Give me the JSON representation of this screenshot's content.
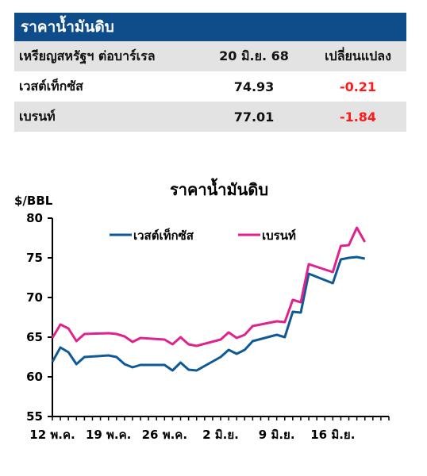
{
  "table": {
    "title": "ราคาน้ำมันดิบ",
    "header": {
      "label": "เหรียญสหรัฐฯ ต่อบาร์เรล",
      "date": "20 มิ.ย. 68",
      "change": "เปลี่ยนแปลง"
    },
    "rows": [
      {
        "name": "เวสต์เท็กซัส",
        "price": "74.93",
        "change": "-0.21"
      },
      {
        "name": "เบรนท์",
        "price": "77.01",
        "change": "-1.84"
      }
    ]
  },
  "colors": {
    "header_bg": "#0f4d8a",
    "wti": "#0f5a96",
    "brent": "#e0228c",
    "negative": "#ff1a1a"
  },
  "chart_data": {
    "type": "line",
    "title": "ราคาน้ำมันดิบ",
    "ylabel": "$/BBL",
    "ylim": [
      55,
      80
    ],
    "yticks": [
      55,
      60,
      65,
      70,
      75,
      80
    ],
    "xlim": [
      0,
      42
    ],
    "xticks": [
      {
        "pos": 0,
        "label": "12 พ.ค."
      },
      {
        "pos": 7,
        "label": "19 พ.ค."
      },
      {
        "pos": 14,
        "label": "26 พ.ค."
      },
      {
        "pos": 21,
        "label": "2 มิ.ย."
      },
      {
        "pos": 28,
        "label": "9 มิ.ย."
      },
      {
        "pos": 35,
        "label": "16 มิ.ย."
      }
    ],
    "legend_position": "top-left",
    "series": [
      {
        "name": "เวสต์เท็กซัส",
        "color": "#0f5a96",
        "points": [
          [
            0,
            61.9
          ],
          [
            1,
            63.7
          ],
          [
            2,
            63.1
          ],
          [
            3,
            61.6
          ],
          [
            4,
            62.5
          ],
          [
            7,
            62.7
          ],
          [
            8,
            62.5
          ],
          [
            9,
            61.6
          ],
          [
            10,
            61.2
          ],
          [
            11,
            61.5
          ],
          [
            14,
            61.5
          ],
          [
            15,
            60.8
          ],
          [
            16,
            61.8
          ],
          [
            17,
            60.9
          ],
          [
            18,
            60.8
          ],
          [
            21,
            62.5
          ],
          [
            22,
            63.4
          ],
          [
            23,
            62.9
          ],
          [
            24,
            63.4
          ],
          [
            25,
            64.5
          ],
          [
            28,
            65.3
          ],
          [
            29,
            65.0
          ],
          [
            30,
            68.2
          ],
          [
            31,
            68.1
          ],
          [
            32,
            73.0
          ],
          [
            35,
            71.8
          ],
          [
            36,
            74.8
          ],
          [
            37,
            75.0
          ],
          [
            38,
            75.1
          ],
          [
            39,
            74.9
          ]
        ]
      },
      {
        "name": "เบรนท์",
        "color": "#e0228c",
        "points": [
          [
            0,
            64.9
          ],
          [
            1,
            66.6
          ],
          [
            2,
            66.1
          ],
          [
            3,
            64.5
          ],
          [
            4,
            65.4
          ],
          [
            7,
            65.5
          ],
          [
            8,
            65.4
          ],
          [
            9,
            65.1
          ],
          [
            10,
            64.4
          ],
          [
            11,
            64.9
          ],
          [
            14,
            64.7
          ],
          [
            15,
            64.1
          ],
          [
            16,
            65.0
          ],
          [
            17,
            64.1
          ],
          [
            18,
            63.9
          ],
          [
            21,
            64.7
          ],
          [
            22,
            65.6
          ],
          [
            23,
            64.9
          ],
          [
            24,
            65.3
          ],
          [
            25,
            66.4
          ],
          [
            28,
            67.0
          ],
          [
            29,
            66.9
          ],
          [
            30,
            69.7
          ],
          [
            31,
            69.4
          ],
          [
            32,
            74.2
          ],
          [
            35,
            73.2
          ],
          [
            36,
            76.5
          ],
          [
            37,
            76.6
          ],
          [
            38,
            78.8
          ],
          [
            39,
            77.0
          ]
        ]
      }
    ]
  }
}
